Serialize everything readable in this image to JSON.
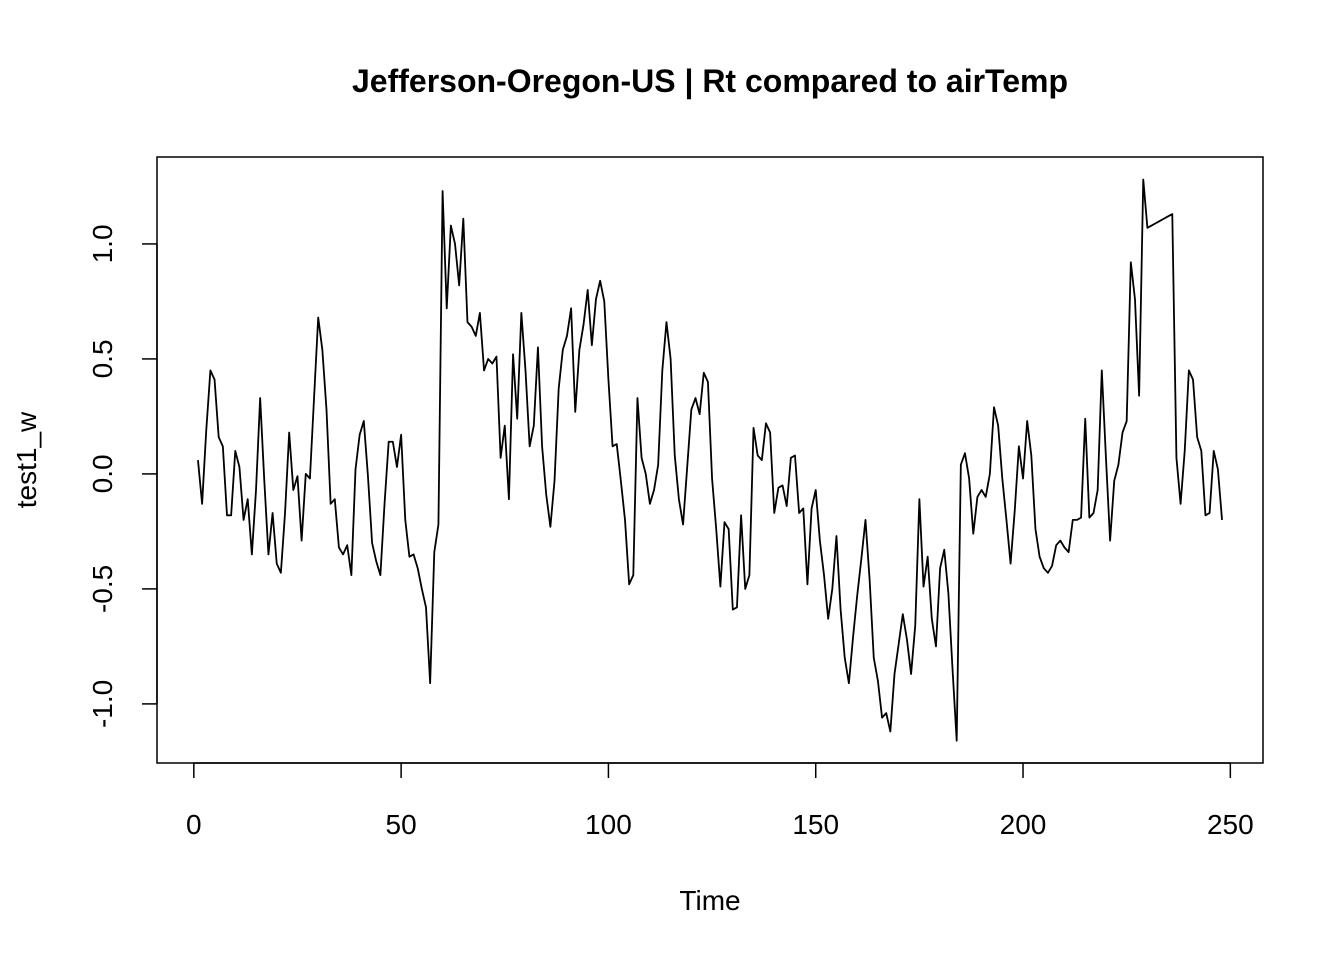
{
  "chart_data": {
    "type": "line",
    "title": "Jefferson-Oregon-US | Rt compared to airTemp",
    "x_label": "Time",
    "y_label": "test1_w",
    "x": [
      1,
      2,
      3,
      4,
      5,
      6,
      7,
      8,
      9,
      10,
      11,
      12,
      13,
      14,
      15,
      16,
      17,
      18,
      19,
      20,
      21,
      22,
      23,
      24,
      25,
      26,
      27,
      28,
      29,
      30,
      31,
      32,
      33,
      34,
      35,
      36,
      37,
      38,
      39,
      40,
      41,
      42,
      43,
      44,
      45,
      46,
      47,
      48,
      49,
      50,
      51,
      52,
      53,
      54,
      55,
      56,
      57,
      58,
      59,
      60,
      61,
      62,
      63,
      64,
      65,
      66,
      67,
      68,
      69,
      70,
      71,
      72,
      73,
      74,
      75,
      76,
      77,
      78,
      79,
      80,
      81,
      82,
      83,
      84,
      85,
      86,
      87,
      88,
      89,
      90,
      91,
      92,
      93,
      94,
      95,
      96,
      97,
      98,
      99,
      100,
      101,
      102,
      103,
      104,
      105,
      106,
      107,
      108,
      109,
      110,
      111,
      112,
      113,
      114,
      115,
      116,
      117,
      118,
      119,
      120,
      121,
      122,
      123,
      124,
      125,
      126,
      127,
      128,
      129,
      130,
      131,
      132,
      133,
      134,
      135,
      136,
      137,
      138,
      139,
      140,
      141,
      142,
      143,
      144,
      145,
      146,
      147,
      148,
      149,
      150,
      151,
      152,
      153,
      154,
      155,
      156,
      157,
      158,
      159,
      160,
      161,
      162,
      163,
      164,
      165,
      166,
      167,
      168,
      169,
      170,
      171,
      172,
      173,
      174,
      175,
      176,
      177,
      178,
      179,
      180,
      181,
      182,
      183,
      184,
      185,
      186,
      187,
      188,
      189,
      190,
      191,
      192,
      193,
      194,
      195,
      196,
      197,
      198,
      199,
      200,
      201,
      202,
      203,
      204,
      205,
      206,
      207,
      208,
      209,
      210,
      211,
      212,
      213,
      214,
      215,
      216,
      217,
      218,
      219,
      220,
      221,
      222,
      223,
      224,
      225,
      226,
      227,
      228,
      229,
      230,
      231,
      232,
      233,
      234,
      235,
      236,
      237,
      238,
      239,
      240,
      241,
      242,
      243,
      244,
      245,
      246,
      247,
      248
    ],
    "series": [
      {
        "color": "#000000",
        "values": [
          0.06,
          -0.13,
          0.19,
          0.45,
          0.41,
          0.16,
          0.12,
          -0.18,
          -0.18,
          0.1,
          0.03,
          -0.2,
          -0.11,
          -0.35,
          -0.07,
          0.33,
          -0.03,
          -0.35,
          -0.17,
          -0.39,
          -0.43,
          -0.17,
          0.18,
          -0.07,
          -0.01,
          -0.29,
          0.0,
          -0.02,
          0.33,
          0.68,
          0.54,
          0.28,
          -0.13,
          -0.11,
          -0.32,
          -0.35,
          -0.31,
          -0.44,
          0.02,
          0.17,
          0.23,
          -0.01,
          -0.3,
          -0.38,
          -0.44,
          -0.13,
          0.14,
          0.14,
          0.03,
          0.17,
          -0.2,
          -0.36,
          -0.35,
          -0.41,
          -0.5,
          -0.58,
          -0.91,
          -0.34,
          -0.22,
          1.23,
          0.72,
          1.08,
          1.0,
          0.82,
          1.11,
          0.66,
          0.64,
          0.6,
          0.7,
          0.45,
          0.5,
          0.48,
          0.51,
          0.07,
          0.21,
          -0.11,
          0.52,
          0.24,
          0.7,
          0.45,
          0.12,
          0.21,
          0.55,
          0.12,
          -0.09,
          -0.23,
          -0.03,
          0.37,
          0.54,
          0.6,
          0.72,
          0.27,
          0.54,
          0.65,
          0.8,
          0.56,
          0.76,
          0.84,
          0.75,
          0.41,
          0.12,
          0.13,
          -0.03,
          -0.2,
          -0.48,
          -0.44,
          0.33,
          0.07,
          0.0,
          -0.13,
          -0.07,
          0.04,
          0.45,
          0.66,
          0.5,
          0.08,
          -0.11,
          -0.22,
          0.03,
          0.28,
          0.33,
          0.26,
          0.44,
          0.4,
          -0.02,
          -0.24,
          -0.49,
          -0.21,
          -0.24,
          -0.59,
          -0.58,
          -0.18,
          -0.5,
          -0.44,
          0.2,
          0.08,
          0.06,
          0.22,
          0.18,
          -0.17,
          -0.06,
          -0.05,
          -0.14,
          0.07,
          0.08,
          -0.17,
          -0.15,
          -0.48,
          -0.15,
          -0.07,
          -0.29,
          -0.44,
          -0.63,
          -0.5,
          -0.27,
          -0.59,
          -0.8,
          -0.91,
          -0.71,
          -0.53,
          -0.37,
          -0.2,
          -0.46,
          -0.8,
          -0.9,
          -1.06,
          -1.04,
          -1.12,
          -0.87,
          -0.74,
          -0.61,
          -0.72,
          -0.87,
          -0.66,
          -0.11,
          -0.49,
          -0.36,
          -0.63,
          -0.75,
          -0.41,
          -0.33,
          -0.52,
          -0.85,
          -1.16,
          0.04,
          0.09,
          -0.02,
          -0.26,
          -0.1,
          -0.07,
          -0.1,
          0.0,
          0.29,
          0.21,
          -0.02,
          -0.2,
          -0.39,
          -0.16,
          0.12,
          -0.02,
          0.23,
          0.08,
          -0.24,
          -0.36,
          -0.41,
          -0.43,
          -0.4,
          -0.31,
          -0.29,
          -0.32,
          -0.34,
          -0.2,
          -0.2,
          -0.19,
          0.24,
          -0.19,
          -0.17,
          -0.07,
          0.45,
          0.07,
          -0.29,
          -0.03,
          0.04,
          0.18,
          0.23,
          0.92,
          0.76,
          0.34,
          1.28,
          1.07,
          1.08,
          1.09,
          1.1,
          1.11,
          1.12,
          1.13,
          0.07,
          -0.13,
          0.1,
          0.45,
          0.41,
          0.16,
          0.1,
          -0.18,
          -0.17,
          0.1,
          0.02,
          -0.2
        ]
      }
    ],
    "xlim": [
      -8.88,
      257.88
    ],
    "ylim": [
      -1.257,
      1.378
    ],
    "xticks": [
      0,
      50,
      100,
      150,
      200,
      250
    ],
    "yticks": [
      {
        "value": -1,
        "label": "-1.0"
      },
      -0.5,
      {
        "value": 0,
        "label": "0.0"
      },
      0.5,
      {
        "value": 1,
        "label": "1.0"
      }
    ],
    "grid": false
  }
}
